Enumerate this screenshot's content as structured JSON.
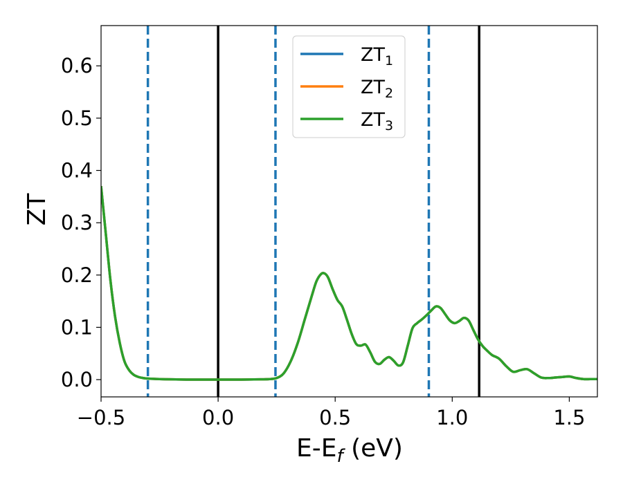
{
  "chart_data": {
    "type": "line",
    "xlabel": "E-E",
    "xlabel_sub": "f",
    "xlabel_unit": " (eV)",
    "ylabel": "ZT",
    "xlim": [
      -0.5,
      1.62
    ],
    "ylim": [
      -0.033,
      0.677
    ],
    "x_ticks": [
      -0.5,
      0.0,
      0.5,
      1.0,
      1.5
    ],
    "x_tick_labels": [
      "−0.5",
      "0.0",
      "0.5",
      "1.0",
      "1.5"
    ],
    "y_ticks": [
      0.0,
      0.1,
      0.2,
      0.3,
      0.4,
      0.5,
      0.6
    ],
    "y_tick_labels": [
      "0.0",
      "0.1",
      "0.2",
      "0.3",
      "0.4",
      "0.5",
      "0.6"
    ],
    "grid": false,
    "legend_position": "top-center",
    "series": [
      {
        "name": "ZT",
        "sub": "1",
        "color": "#1f77b4"
      },
      {
        "name": "ZT",
        "sub": "2",
        "color": "#ff7f0e"
      },
      {
        "name": "ZT",
        "sub": "3",
        "color": "#2ca02c"
      }
    ],
    "curve": {
      "x": [
        -0.5,
        -0.48,
        -0.46,
        -0.44,
        -0.42,
        -0.4,
        -0.38,
        -0.36,
        -0.34,
        -0.32,
        -0.3,
        -0.25,
        -0.2,
        -0.1,
        0.0,
        0.1,
        0.18,
        0.22,
        0.25,
        0.28,
        0.31,
        0.34,
        0.37,
        0.4,
        0.42,
        0.44,
        0.455,
        0.47,
        0.49,
        0.51,
        0.53,
        0.55,
        0.57,
        0.59,
        0.61,
        0.63,
        0.65,
        0.67,
        0.69,
        0.71,
        0.73,
        0.75,
        0.77,
        0.79,
        0.81,
        0.83,
        0.85,
        0.87,
        0.89,
        0.91,
        0.93,
        0.95,
        0.97,
        0.99,
        1.01,
        1.03,
        1.05,
        1.07,
        1.09,
        1.11,
        1.13,
        1.15,
        1.17,
        1.2,
        1.23,
        1.26,
        1.29,
        1.32,
        1.35,
        1.38,
        1.41,
        1.44,
        1.47,
        1.5,
        1.53,
        1.56,
        1.59,
        1.62
      ],
      "y": [
        0.37,
        0.28,
        0.19,
        0.12,
        0.07,
        0.035,
        0.018,
        0.009,
        0.005,
        0.003,
        0.002,
        0.001,
        0.0005,
        0.0,
        0.0,
        0.0,
        0.0005,
        0.001,
        0.003,
        0.012,
        0.035,
        0.07,
        0.115,
        0.16,
        0.188,
        0.202,
        0.203,
        0.195,
        0.172,
        0.152,
        0.14,
        0.115,
        0.088,
        0.068,
        0.065,
        0.067,
        0.052,
        0.034,
        0.03,
        0.038,
        0.043,
        0.036,
        0.027,
        0.033,
        0.065,
        0.098,
        0.108,
        0.115,
        0.123,
        0.132,
        0.14,
        0.137,
        0.125,
        0.113,
        0.108,
        0.112,
        0.118,
        0.113,
        0.095,
        0.077,
        0.064,
        0.055,
        0.047,
        0.04,
        0.026,
        0.015,
        0.018,
        0.02,
        0.012,
        0.004,
        0.003,
        0.004,
        0.005,
        0.006,
        0.003,
        0.001,
        0.001,
        0.001
      ]
    },
    "vlines": [
      {
        "x": -0.3,
        "style": "dashed",
        "color": "#1f77b4"
      },
      {
        "x": 0.0,
        "style": "solid",
        "color": "#000000"
      },
      {
        "x": 0.245,
        "style": "dashed",
        "color": "#1f77b4"
      },
      {
        "x": 0.9,
        "style": "dashed",
        "color": "#1f77b4"
      },
      {
        "x": 1.115,
        "style": "solid",
        "color": "#000000"
      }
    ]
  }
}
